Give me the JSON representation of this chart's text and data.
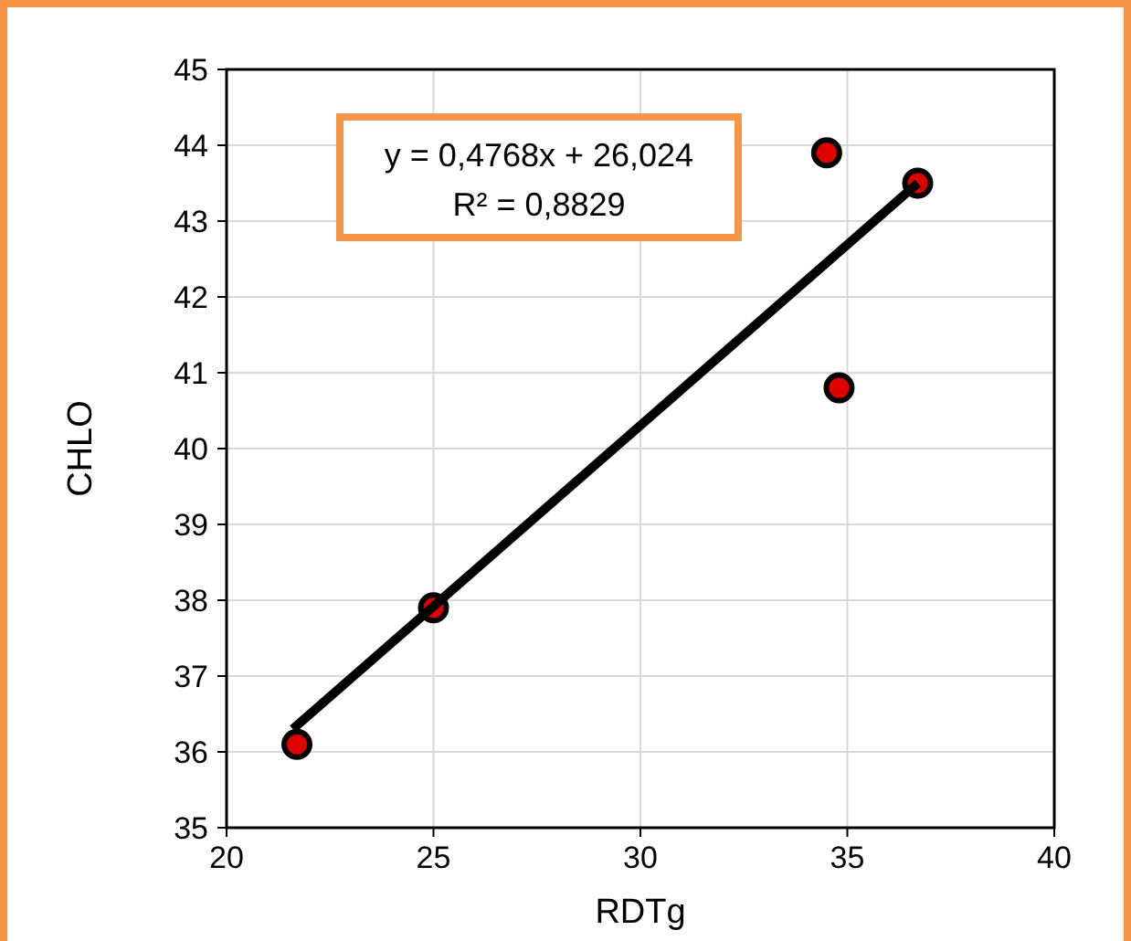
{
  "chart_data": {
    "type": "scatter",
    "xlabel": "RDTg",
    "ylabel": "CHLO",
    "xlim": [
      20,
      40
    ],
    "xticks": [
      20,
      25,
      30,
      35,
      40
    ],
    "ylim": [
      35,
      45
    ],
    "yticks": [
      35,
      36,
      37,
      38,
      39,
      40,
      41,
      42,
      43,
      44,
      45
    ],
    "grid": true,
    "annotations": [
      "y = 0,4768x + 26,024",
      "R² = 0,8829"
    ],
    "series": [
      {
        "type": "scatter",
        "marker": "circle",
        "color": "#e00000",
        "x": [
          21.7,
          25.0,
          34.5,
          34.8,
          36.7
        ],
        "values": [
          36.1,
          37.9,
          43.9,
          40.8,
          43.5
        ]
      },
      {
        "type": "line",
        "color": "#000000",
        "line_style": "solid",
        "x": [
          21.6,
          36.7
        ],
        "values": [
          36.3,
          43.5
        ]
      }
    ]
  }
}
